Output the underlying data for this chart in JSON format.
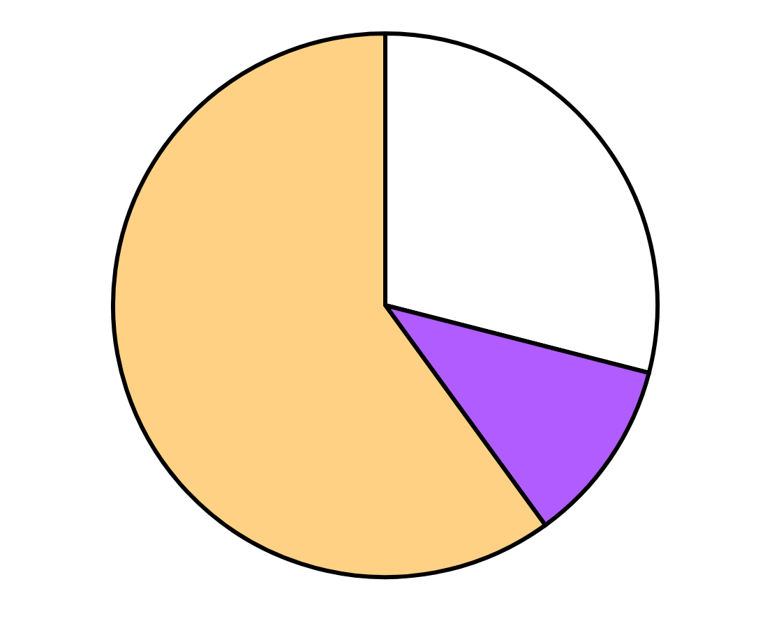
{
  "chart_data": {
    "type": "pie",
    "categories": [
      null,
      null,
      null
    ],
    "values": [
      29,
      11,
      60
    ],
    "colors": [
      "#ffffff",
      "#b05cff",
      "#ffd184"
    ]
  }
}
